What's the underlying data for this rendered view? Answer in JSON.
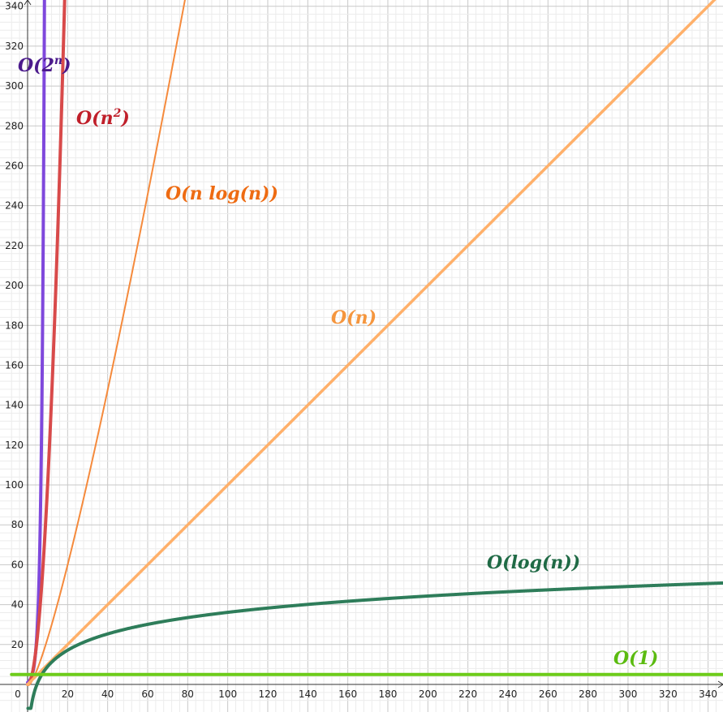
{
  "chart_data": {
    "type": "line",
    "title": "",
    "xlabel": "",
    "ylabel": "",
    "xlim": [
      -8,
      352
    ],
    "ylim": [
      -9,
      345
    ],
    "x_ticks": [
      0,
      20,
      40,
      60,
      80,
      100,
      120,
      140,
      160,
      180,
      200,
      220,
      240,
      260,
      280,
      300,
      320,
      340
    ],
    "y_ticks": [
      20,
      40,
      60,
      80,
      100,
      120,
      140,
      160,
      180,
      200,
      220,
      240,
      260,
      280,
      300,
      320,
      340
    ],
    "grid": true,
    "minor_grid": true,
    "series": [
      {
        "name": "O(2^n)",
        "label_main": "O(2",
        "label_sup": "n",
        "label_end": ")",
        "formula": "2^x",
        "color": "#7f48dc"
      },
      {
        "name": "O(n^2)",
        "label_main": "O(n",
        "label_sup": "2",
        "label_end": ")",
        "formula": "x^2",
        "color": "#d84a4a"
      },
      {
        "name": "O(n log(n))",
        "label_main": "O(n log(n))",
        "formula": "x*ln(x)",
        "color": "#f58a3c"
      },
      {
        "name": "O(n)",
        "label_main": "O(n)",
        "formula": "x",
        "color": "#ffb06a"
      },
      {
        "name": "O(log(n))",
        "label_main": "O(log(n))",
        "formula": "log-scaled",
        "color": "#2e7d5a"
      },
      {
        "name": "O(1)",
        "label_main": "O(1)",
        "formula": "constant 5",
        "color": "#6dcc1a"
      }
    ],
    "label_colors": {
      "O(2^n)": "#4b1a8c",
      "O(n^2)": "#c01f2a",
      "O(n log(n))": "#ee6b12",
      "O(n)": "#f5963e",
      "O(log(n))": "#1f6a45",
      "O(1)": "#5bbb10"
    }
  }
}
